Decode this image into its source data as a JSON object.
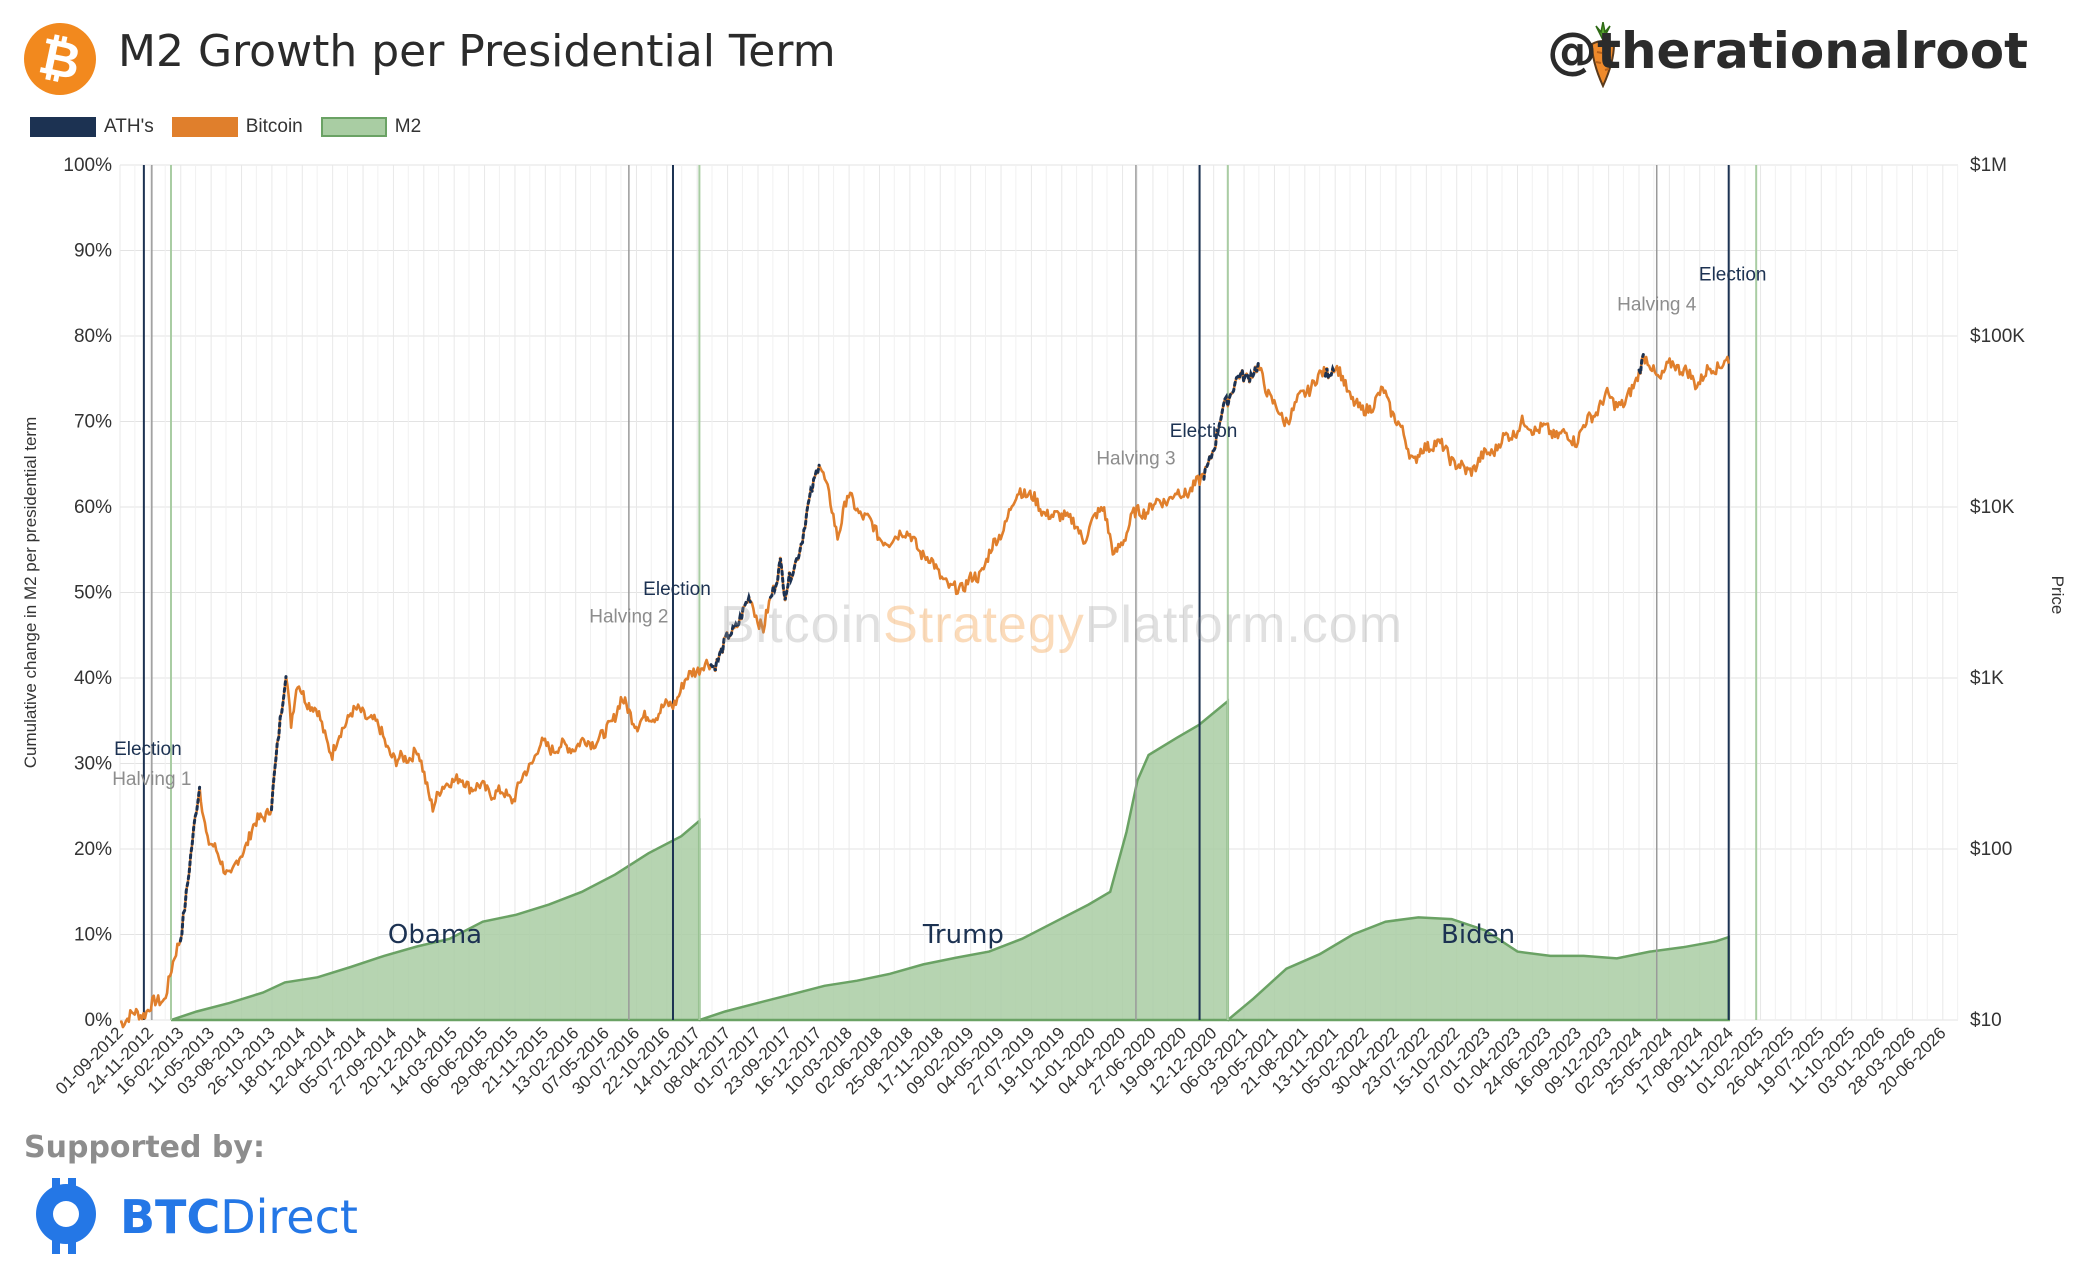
{
  "header": {
    "title": "M2 Growth per Presidential Term",
    "logo_symbol": "₿",
    "handle": "@therationalroot"
  },
  "legend": [
    {
      "label": "ATH's",
      "color": "#1c3252"
    },
    {
      "label": "Bitcoin",
      "color": "#e07f2c"
    },
    {
      "label": "M2",
      "color": "#a9cda3"
    }
  ],
  "watermark": {
    "part1": "Bitcoin",
    "part2": "Strategy",
    "part3": "Platform.com"
  },
  "footer": {
    "supported_label": "Supported by:",
    "sponsor_a": "BTC",
    "sponsor_b": "Direct"
  },
  "chart_data": {
    "type": "line",
    "title": "M2 Growth per Presidential Term",
    "ylabel_left": "Cumulative change in M2 per presidential term",
    "ylabel_right": "Price",
    "left_axis": {
      "min": 0,
      "max": 100,
      "ticks": [
        "0%",
        "10%",
        "20%",
        "30%",
        "40%",
        "50%",
        "60%",
        "70%",
        "80%",
        "90%",
        "100%"
      ]
    },
    "right_axis": {
      "scale": "log",
      "min": 10,
      "max": 1000000,
      "ticks": [
        {
          "value": 10,
          "label": "$10"
        },
        {
          "value": 100,
          "label": "$100"
        },
        {
          "value": 1000,
          "label": "$1K"
        },
        {
          "value": 10000,
          "label": "$10K"
        },
        {
          "value": 100000,
          "label": "$100K"
        },
        {
          "value": 1000000,
          "label": "$1M"
        }
      ]
    },
    "x_domain": [
      "2012-09-01",
      "2026-08-01"
    ],
    "x_tick_labels": [
      "01-09-2012",
      "24-11-2012",
      "16-02-2013",
      "11-05-2013",
      "03-08-2013",
      "26-10-2013",
      "18-01-2014",
      "12-04-2014",
      "05-07-2014",
      "27-09-2014",
      "20-12-2014",
      "14-03-2015",
      "06-06-2015",
      "29-08-2015",
      "21-11-2015",
      "13-02-2016",
      "07-05-2016",
      "30-07-2016",
      "22-10-2016",
      "14-01-2017",
      "08-04-2017",
      "01-07-2017",
      "23-09-2017",
      "16-12-2017",
      "10-03-2018",
      "02-06-2018",
      "25-08-2018",
      "17-11-2018",
      "09-02-2019",
      "04-05-2019",
      "27-07-2019",
      "19-10-2019",
      "11-01-2020",
      "04-04-2020",
      "27-06-2020",
      "19-09-2020",
      "12-12-2020",
      "06-03-2021",
      "29-05-2021",
      "21-08-2021",
      "13-11-2021",
      "05-02-2022",
      "30-04-2022",
      "23-07-2022",
      "15-10-2022",
      "07-01-2023",
      "01-04-2023",
      "24-06-2023",
      "16-09-2023",
      "09-12-2023",
      "02-03-2024",
      "25-05-2024",
      "17-08-2024",
      "09-11-2024",
      "01-02-2025",
      "26-04-2025",
      "19-07-2025",
      "11-10-2025",
      "03-01-2026",
      "28-03-2026",
      "20-06-2026"
    ],
    "events": [
      {
        "type": "election",
        "label": "Election",
        "date": "2012-11-06"
      },
      {
        "type": "inauguration",
        "label": "",
        "date": "2013-01-20"
      },
      {
        "type": "halving",
        "label": "Halving 1",
        "date": "2012-11-28"
      },
      {
        "type": "halving",
        "label": "Halving 2",
        "date": "2016-07-09"
      },
      {
        "type": "election",
        "label": "Election",
        "date": "2016-11-08"
      },
      {
        "type": "inauguration",
        "label": "",
        "date": "2017-01-20"
      },
      {
        "type": "halving",
        "label": "Halving 3",
        "date": "2020-05-11"
      },
      {
        "type": "election",
        "label": "Election",
        "date": "2020-11-03"
      },
      {
        "type": "inauguration",
        "label": "",
        "date": "2021-01-20"
      },
      {
        "type": "halving",
        "label": "Halving 4",
        "date": "2024-04-20"
      },
      {
        "type": "election",
        "label": "Election",
        "date": "2024-11-05"
      },
      {
        "type": "inauguration",
        "label": "",
        "date": "2025-01-20"
      }
    ],
    "terms": [
      {
        "name": "Obama",
        "points": [
          [
            "2013-01-20",
            0
          ],
          [
            "2013-04-01",
            1
          ],
          [
            "2013-07-01",
            2
          ],
          [
            "2013-10-01",
            3.2
          ],
          [
            "2013-12-01",
            4.4
          ],
          [
            "2014-03-01",
            5
          ],
          [
            "2014-06-01",
            6.2
          ],
          [
            "2014-09-01",
            7.5
          ],
          [
            "2014-12-01",
            8.6
          ],
          [
            "2015-03-01",
            9.5
          ],
          [
            "2015-06-01",
            11.5
          ],
          [
            "2015-09-01",
            12.3
          ],
          [
            "2015-12-01",
            13.5
          ],
          [
            "2016-03-01",
            15
          ],
          [
            "2016-06-01",
            17
          ],
          [
            "2016-09-01",
            19.5
          ],
          [
            "2016-12-01",
            21.5
          ],
          [
            "2017-01-20",
            23.3
          ]
        ]
      },
      {
        "name": "Trump",
        "points": [
          [
            "2017-01-20",
            0
          ],
          [
            "2017-04-01",
            1
          ],
          [
            "2017-07-01",
            2
          ],
          [
            "2017-10-01",
            3
          ],
          [
            "2018-01-01",
            4
          ],
          [
            "2018-04-01",
            4.6
          ],
          [
            "2018-07-01",
            5.4
          ],
          [
            "2018-10-01",
            6.5
          ],
          [
            "2019-01-01",
            7.3
          ],
          [
            "2019-04-01",
            8
          ],
          [
            "2019-07-01",
            9.5
          ],
          [
            "2019-10-01",
            11.5
          ],
          [
            "2020-01-01",
            13.5
          ],
          [
            "2020-03-01",
            15
          ],
          [
            "2020-04-15",
            22
          ],
          [
            "2020-05-15",
            28
          ],
          [
            "2020-06-15",
            31
          ],
          [
            "2020-09-01",
            33
          ],
          [
            "2020-11-01",
            34.5
          ],
          [
            "2021-01-20",
            37.3
          ]
        ]
      },
      {
        "name": "Biden",
        "points": [
          [
            "2021-01-20",
            0
          ],
          [
            "2021-04-01",
            2.5
          ],
          [
            "2021-07-01",
            6
          ],
          [
            "2021-10-01",
            7.7
          ],
          [
            "2022-01-01",
            10
          ],
          [
            "2022-04-01",
            11.5
          ],
          [
            "2022-07-01",
            12
          ],
          [
            "2022-10-01",
            11.8
          ],
          [
            "2023-01-01",
            10.5
          ],
          [
            "2023-04-01",
            8
          ],
          [
            "2023-07-01",
            7.5
          ],
          [
            "2023-10-01",
            7.5
          ],
          [
            "2024-01-01",
            7.2
          ],
          [
            "2024-04-01",
            8
          ],
          [
            "2024-07-01",
            8.5
          ],
          [
            "2024-10-01",
            9.2
          ],
          [
            "2024-11-05",
            9.7
          ]
        ]
      }
    ],
    "bitcoin_price": [
      [
        "2012-09-01",
        10
      ],
      [
        "2012-11-01",
        11
      ],
      [
        "2013-01-01",
        13.5
      ],
      [
        "2013-02-15",
        30
      ],
      [
        "2013-04-09",
        230
      ],
      [
        "2013-05-01",
        115
      ],
      [
        "2013-07-05",
        68
      ],
      [
        "2013-09-01",
        130
      ],
      [
        "2013-10-25",
        180
      ],
      [
        "2013-12-04",
        1150
      ],
      [
        "2013-12-18",
        550
      ],
      [
        "2014-01-05",
        900
      ],
      [
        "2014-03-01",
        620
      ],
      [
        "2014-04-11",
        360
      ],
      [
        "2014-06-01",
        650
      ],
      [
        "2014-08-01",
        580
      ],
      [
        "2014-10-05",
        320
      ],
      [
        "2014-12-01",
        375
      ],
      [
        "2015-01-14",
        180
      ],
      [
        "2015-03-01",
        260
      ],
      [
        "2015-06-01",
        225
      ],
      [
        "2015-08-25",
        200
      ],
      [
        "2015-11-04",
        400
      ],
      [
        "2016-01-15",
        390
      ],
      [
        "2016-05-01",
        450
      ],
      [
        "2016-06-17",
        740
      ],
      [
        "2016-08-02",
        540
      ],
      [
        "2016-11-08",
        710
      ],
      [
        "2017-01-04",
        1130
      ],
      [
        "2017-03-01",
        1200
      ],
      [
        "2017-06-10",
        2900
      ],
      [
        "2017-07-16",
        1900
      ],
      [
        "2017-09-01",
        4900
      ],
      [
        "2017-09-14",
        3000
      ],
      [
        "2017-11-01",
        6700
      ],
      [
        "2017-12-17",
        19500
      ],
      [
        "2018-02-06",
        6900
      ],
      [
        "2018-03-05",
        11500
      ],
      [
        "2018-06-29",
        5900
      ],
      [
        "2018-08-01",
        7600
      ],
      [
        "2018-11-25",
        3900
      ],
      [
        "2018-12-15",
        3200
      ],
      [
        "2019-03-01",
        3900
      ],
      [
        "2019-05-15",
        8000
      ],
      [
        "2019-06-26",
        13000
      ],
      [
        "2019-09-25",
        8500
      ],
      [
        "2019-10-26",
        9300
      ],
      [
        "2019-12-18",
        6600
      ],
      [
        "2020-02-13",
        10300
      ],
      [
        "2020-03-12",
        4900
      ],
      [
        "2020-05-01",
        8800
      ],
      [
        "2020-07-27",
        11000
      ],
      [
        "2020-09-01",
        11800
      ],
      [
        "2020-10-21",
        13000
      ],
      [
        "2020-11-03",
        13900
      ],
      [
        "2020-12-17",
        23000
      ],
      [
        "2021-01-08",
        40000
      ],
      [
        "2021-02-21",
        57000
      ],
      [
        "2021-04-14",
        63500
      ],
      [
        "2021-06-22",
        31000
      ],
      [
        "2021-09-07",
        52000
      ],
      [
        "2021-11-10",
        67500
      ],
      [
        "2022-01-24",
        35000
      ],
      [
        "2022-03-28",
        47000
      ],
      [
        "2022-06-18",
        18900
      ],
      [
        "2022-08-15",
        24500
      ],
      [
        "2022-11-09",
        15800
      ],
      [
        "2023-01-15",
        21000
      ],
      [
        "2023-04-14",
        30500
      ],
      [
        "2023-09-11",
        25000
      ],
      [
        "2023-10-24",
        34500
      ],
      [
        "2023-12-05",
        44000
      ],
      [
        "2024-01-23",
        38500
      ],
      [
        "2024-03-14",
        73500
      ],
      [
        "2024-05-01",
        57000
      ],
      [
        "2024-06-07",
        71000
      ],
      [
        "2024-08-05",
        53500
      ],
      [
        "2024-09-27",
        66000
      ],
      [
        "2024-10-29",
        72500
      ],
      [
        "2024-11-05",
        69000
      ]
    ],
    "ath_segments": [
      [
        "2013-02-15",
        "2013-04-09"
      ],
      [
        "2013-10-25",
        "2013-12-04"
      ],
      [
        "2017-01-01",
        "2017-01-05"
      ],
      [
        "2017-02-20",
        "2017-06-10"
      ],
      [
        "2017-08-01",
        "2017-12-17"
      ],
      [
        "2020-11-15",
        "2021-04-14"
      ],
      [
        "2021-10-15",
        "2021-11-10"
      ],
      [
        "2024-03-01",
        "2024-03-14"
      ]
    ]
  }
}
